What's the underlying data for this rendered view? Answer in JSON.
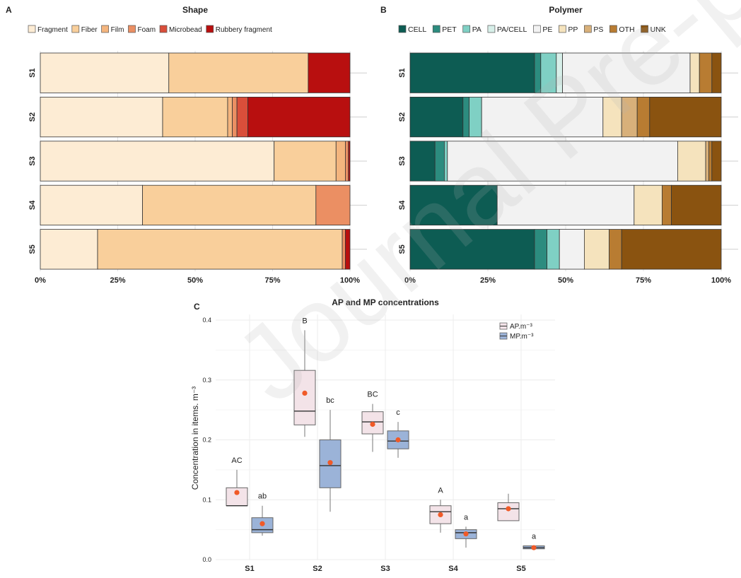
{
  "watermark": "Journal Pre-proof",
  "chart_data": [
    {
      "panel": "A",
      "type": "bar",
      "orientation": "horizontal",
      "stacked": true,
      "title": "Shape",
      "categories": [
        "S1",
        "S2",
        "S3",
        "S4",
        "S5"
      ],
      "x_ticks": [
        "0%",
        "25%",
        "50%",
        "75%",
        "100%"
      ],
      "xlim": [
        0,
        100
      ],
      "legend": "top",
      "series": [
        {
          "name": "Fragment",
          "color": "#fdecd4",
          "values": [
            41.5,
            39.5,
            75.5,
            33.0,
            18.5
          ]
        },
        {
          "name": "Fiber",
          "color": "#f9cf9b",
          "values": [
            45.0,
            21.0,
            20.0,
            56.0,
            79.0
          ]
        },
        {
          "name": "Film",
          "color": "#f4b57e",
          "values": [
            0,
            1.5,
            3.0,
            0,
            0
          ]
        },
        {
          "name": "Foam",
          "color": "#eb8f63",
          "values": [
            0,
            1.5,
            1.0,
            11.0,
            1.0
          ]
        },
        {
          "name": "Microbead",
          "color": "#d94e3a",
          "values": [
            0,
            3.5,
            0,
            0,
            0
          ]
        },
        {
          "name": "Rubbery fragment",
          "color": "#b80f0f",
          "values": [
            13.5,
            33.0,
            0.5,
            0,
            1.5
          ]
        }
      ]
    },
    {
      "panel": "B",
      "type": "bar",
      "orientation": "horizontal",
      "stacked": true,
      "title": "Polymer",
      "categories": [
        "S1",
        "S2",
        "S3",
        "S4",
        "S5"
      ],
      "x_ticks": [
        "0%",
        "25%",
        "50%",
        "75%",
        "100%"
      ],
      "xlim": [
        0,
        100
      ],
      "legend": "top",
      "series": [
        {
          "name": "CELL",
          "color": "#0d5c53",
          "values": [
            40,
            17,
            8,
            28,
            40
          ]
        },
        {
          "name": "PET",
          "color": "#2c8c7f",
          "values": [
            2,
            2,
            3,
            0,
            4
          ]
        },
        {
          "name": "PA",
          "color": "#7fd0c4",
          "values": [
            5,
            4,
            1,
            0,
            4
          ]
        },
        {
          "name": "PA/CELL",
          "color": "#d7efe9",
          "values": [
            2,
            0,
            0,
            0,
            0
          ]
        },
        {
          "name": "PE",
          "color": "#f2f2f2",
          "values": [
            41,
            39,
            74,
            44,
            8
          ]
        },
        {
          "name": "PP",
          "color": "#f5e3bd",
          "values": [
            3,
            6,
            9,
            9,
            8
          ]
        },
        {
          "name": "PS",
          "color": "#d8b07a",
          "values": [
            0,
            5,
            1,
            0,
            0
          ]
        },
        {
          "name": "OTH",
          "color": "#b87c32",
          "values": [
            4,
            4,
            1,
            3,
            4
          ]
        },
        {
          "name": "UNK",
          "color": "#8a5310",
          "values": [
            3,
            23,
            3,
            16,
            32
          ]
        }
      ]
    },
    {
      "panel": "C",
      "type": "box",
      "title": "AP and MP concentrations",
      "ylabel": "Concentration in items. m⁻³",
      "categories": [
        "S1",
        "S2",
        "S3",
        "S4",
        "S5"
      ],
      "ylim": [
        0,
        0.4
      ],
      "y_ticks": [
        "0.0",
        "0.1",
        "0.2",
        "0.3",
        "0.4"
      ],
      "legend": "top-right",
      "legend_labels": [
        "AP.m⁻³",
        "MP.m⁻³"
      ],
      "series": [
        {
          "name": "AP.m⁻³",
          "color": "#f3e3e8",
          "boxes": [
            {
              "whisker_low": 0.09,
              "q1": 0.09,
              "median": 0.09,
              "q3": 0.12,
              "whisker_high": 0.15,
              "mean": 0.112,
              "letter": "AC"
            },
            {
              "whisker_low": 0.205,
              "q1": 0.225,
              "median": 0.248,
              "q3": 0.316,
              "whisker_high": 0.383,
              "mean": 0.278,
              "letter": "B"
            },
            {
              "whisker_low": 0.18,
              "q1": 0.21,
              "median": 0.23,
              "q3": 0.247,
              "whisker_high": 0.26,
              "mean": 0.226,
              "letter": "BC"
            },
            {
              "whisker_low": 0.045,
              "q1": 0.06,
              "median": 0.08,
              "q3": 0.09,
              "whisker_high": 0.1,
              "mean": 0.075,
              "letter": "A"
            },
            {
              "whisker_low": 0.065,
              "q1": 0.065,
              "median": 0.085,
              "q3": 0.095,
              "whisker_high": 0.11,
              "mean": 0.085,
              "letter": ""
            }
          ]
        },
        {
          "name": "MP.m⁻³",
          "color": "#9bb3d8",
          "boxes": [
            {
              "whisker_low": 0.04,
              "q1": 0.045,
              "median": 0.05,
              "q3": 0.07,
              "whisker_high": 0.09,
              "mean": 0.06,
              "letter": "ab"
            },
            {
              "whisker_low": 0.08,
              "q1": 0.12,
              "median": 0.157,
              "q3": 0.2,
              "whisker_high": 0.25,
              "mean": 0.162,
              "letter": "bc"
            },
            {
              "whisker_low": 0.17,
              "q1": 0.185,
              "median": 0.198,
              "q3": 0.215,
              "whisker_high": 0.23,
              "mean": 0.2,
              "letter": "c"
            },
            {
              "whisker_low": 0.02,
              "q1": 0.035,
              "median": 0.045,
              "q3": 0.05,
              "whisker_high": 0.055,
              "mean": 0.043,
              "letter": "a"
            },
            {
              "whisker_low": 0.018,
              "q1": 0.018,
              "median": 0.02,
              "q3": 0.023,
              "whisker_high": 0.023,
              "mean": 0.02,
              "letter": "a"
            }
          ]
        }
      ],
      "mean_marker_color": "#f05a28"
    }
  ]
}
